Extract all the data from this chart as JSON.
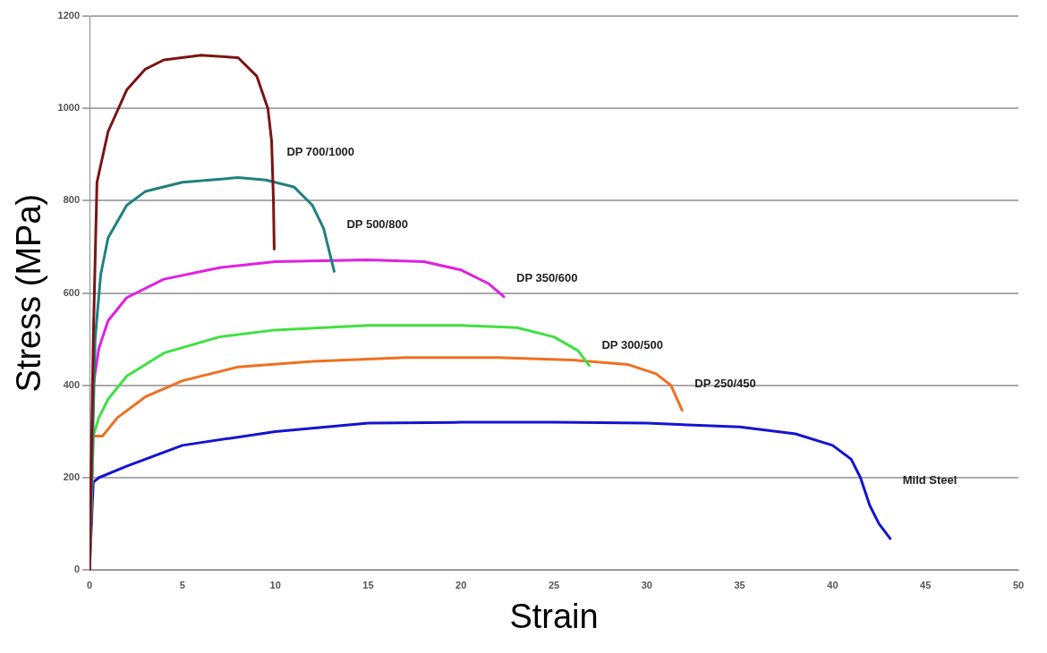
{
  "chart_data": {
    "type": "line",
    "xlabel": "Strain",
    "ylabel": "Stress (MPa)",
    "xlim": [
      0,
      50
    ],
    "xticks": [
      0,
      5,
      10,
      15,
      20,
      25,
      30,
      35,
      40,
      45,
      50
    ],
    "ylim": [
      0,
      1200
    ],
    "yticks": [
      0,
      200,
      400,
      600,
      800,
      1000,
      1200
    ],
    "grid": "y",
    "legend": false,
    "marker": "none",
    "line_style": "solid",
    "series": [
      {
        "name": "DP 700/1000",
        "color": "#7b1414",
        "x": [
          0,
          0.2,
          0.4,
          1,
          2,
          3,
          4,
          6,
          8,
          9,
          9.6,
          9.8,
          9.9,
          9.94
        ],
        "values": [
          0,
          500,
          840,
          950,
          1040,
          1085,
          1105,
          1115,
          1110,
          1070,
          1000,
          930,
          800,
          695
        ]
      },
      {
        "name": "DP 500/800",
        "color": "#1f8080",
        "x": [
          0,
          0.3,
          0.6,
          1,
          2,
          3,
          5,
          8,
          9.5,
          11,
          12,
          12.6,
          13.17
        ],
        "values": [
          0,
          500,
          640,
          720,
          790,
          820,
          840,
          850,
          845,
          830,
          790,
          740,
          647
        ]
      },
      {
        "name": "DP 350/600",
        "color": "#e020e0",
        "x": [
          0,
          0.2,
          0.5,
          1,
          2,
          4,
          7,
          10,
          15,
          18,
          20,
          21.5,
          22.3
        ],
        "values": [
          0,
          400,
          480,
          540,
          590,
          630,
          655,
          668,
          672,
          668,
          650,
          620,
          592
        ]
      },
      {
        "name": "DP 300/500",
        "color": "#40e040",
        "x": [
          0,
          0.2,
          0.5,
          1,
          2,
          4,
          7,
          10,
          15,
          20,
          23,
          25,
          26.3,
          26.9
        ],
        "values": [
          0,
          290,
          330,
          370,
          420,
          470,
          505,
          520,
          530,
          530,
          525,
          505,
          475,
          443
        ]
      },
      {
        "name": "DP 250/450",
        "color": "#f07020",
        "x": [
          0,
          0.2,
          0.7,
          1.5,
          3,
          5,
          8,
          12,
          17,
          22,
          26,
          29,
          30.5,
          31.3,
          31.9
        ],
        "values": [
          0,
          290,
          290,
          330,
          375,
          410,
          440,
          452,
          460,
          460,
          455,
          445,
          425,
          400,
          346
        ]
      },
      {
        "name": "Mild Steel",
        "color": "#1414d0",
        "x": [
          0,
          0.2,
          0.5,
          2,
          5,
          10,
          15,
          20,
          25,
          30,
          35,
          38,
          40,
          41,
          41.5,
          42,
          42.5,
          43.1
        ],
        "values": [
          0,
          190,
          200,
          225,
          270,
          300,
          318,
          320,
          320,
          318,
          310,
          295,
          270,
          240,
          200,
          140,
          100,
          68
        ]
      }
    ]
  }
}
